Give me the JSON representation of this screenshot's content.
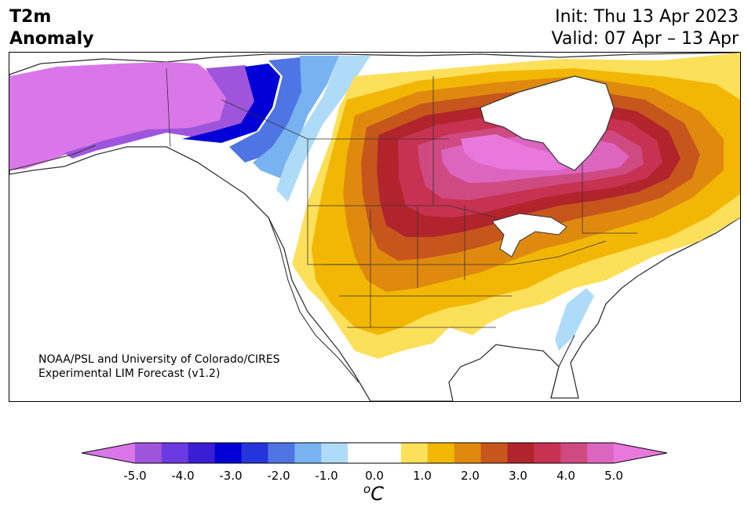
{
  "title": {
    "line1": "T2m",
    "line2": "Anomaly",
    "init": "Init: Thu 13 Apr 2023",
    "valid": "Valid: 07 Apr – 13 Apr"
  },
  "credit": {
    "line1": "NOAA/PSL and University of Colorado/CIRES",
    "line2": "Experimental LIM Forecast (v1.2)"
  },
  "colorbar": {
    "unit_base": "C",
    "unit_sup": "o",
    "min": -5.0,
    "max": 5.0,
    "extend": "both",
    "colors": [
      "#d977e8",
      "#9e55dc",
      "#6b3ae0",
      "#3a1ed4",
      "#0000d6",
      "#2436db",
      "#4f74e3",
      "#78b2f0",
      "#aedcf8",
      "#ffffff",
      "#ffffff",
      "#fde05a",
      "#f2b705",
      "#df8a0f",
      "#c6561c",
      "#b1242b",
      "#c73152",
      "#ce4a80",
      "#dc65c0",
      "#e878dc"
    ],
    "ticks": [
      "-5.0",
      "-4.0",
      "-3.0",
      "-2.0",
      "-1.0",
      "0.0",
      "1.0",
      "2.0",
      "3.0",
      "4.0",
      "5.0"
    ]
  },
  "map": {
    "region": "North America",
    "variable": "2 m temperature anomaly"
  }
}
